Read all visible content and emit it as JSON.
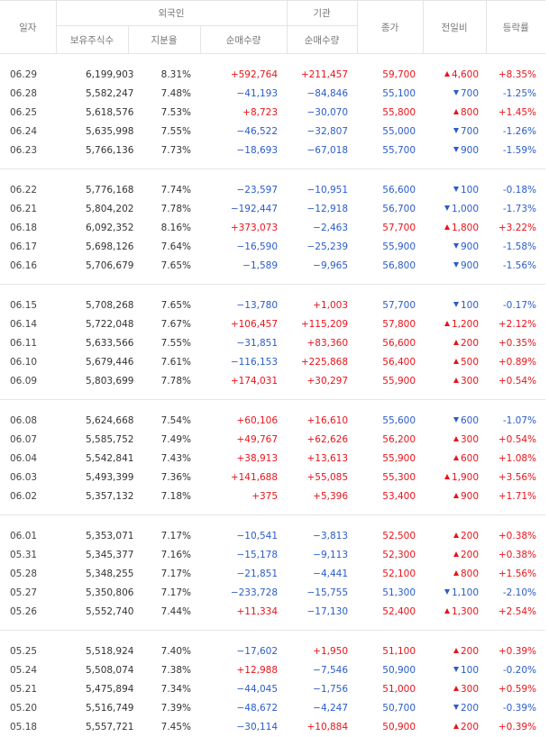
{
  "header": {
    "date": "일자",
    "foreign": "외국인",
    "institution": "기관",
    "close": "종가",
    "change": "전일비",
    "rate": "등락률",
    "holdings": "보유주식수",
    "ratio": "지분율",
    "foreign_net": "순매수량",
    "inst_net": "순매수량"
  },
  "groups": [
    [
      {
        "date": "06.29",
        "hold": "6,199,903",
        "ratio": "8.31%",
        "fnet": "+592,764",
        "inet": "+211,457",
        "close": "59,700",
        "dir": "up",
        "chg": "4,600",
        "pct": "+8.35%"
      },
      {
        "date": "06.28",
        "hold": "5,582,247",
        "ratio": "7.48%",
        "fnet": "−41,193",
        "inet": "−84,846",
        "close": "55,100",
        "dir": "dn",
        "chg": "700",
        "pct": "-1.25%"
      },
      {
        "date": "06.25",
        "hold": "5,618,576",
        "ratio": "7.53%",
        "fnet": "+8,723",
        "inet": "−30,070",
        "close": "55,800",
        "dir": "up",
        "chg": "800",
        "pct": "+1.45%"
      },
      {
        "date": "06.24",
        "hold": "5,635,998",
        "ratio": "7.55%",
        "fnet": "−46,522",
        "inet": "−32,807",
        "close": "55,000",
        "dir": "dn",
        "chg": "700",
        "pct": "-1.26%"
      },
      {
        "date": "06.23",
        "hold": "5,766,136",
        "ratio": "7.73%",
        "fnet": "−18,693",
        "inet": "−67,018",
        "close": "55,700",
        "dir": "dn",
        "chg": "900",
        "pct": "-1.59%"
      }
    ],
    [
      {
        "date": "06.22",
        "hold": "5,776,168",
        "ratio": "7.74%",
        "fnet": "−23,597",
        "inet": "−10,951",
        "close": "56,600",
        "dir": "dn",
        "chg": "100",
        "pct": "-0.18%"
      },
      {
        "date": "06.21",
        "hold": "5,804,202",
        "ratio": "7.78%",
        "fnet": "−192,447",
        "inet": "−12,918",
        "close": "56,700",
        "dir": "dn",
        "chg": "1,000",
        "pct": "-1.73%"
      },
      {
        "date": "06.18",
        "hold": "6,092,352",
        "ratio": "8.16%",
        "fnet": "+373,073",
        "inet": "−2,463",
        "close": "57,700",
        "dir": "up",
        "chg": "1,800",
        "pct": "+3.22%"
      },
      {
        "date": "06.17",
        "hold": "5,698,126",
        "ratio": "7.64%",
        "fnet": "−16,590",
        "inet": "−25,239",
        "close": "55,900",
        "dir": "dn",
        "chg": "900",
        "pct": "-1.58%"
      },
      {
        "date": "06.16",
        "hold": "5,706,679",
        "ratio": "7.65%",
        "fnet": "−1,589",
        "inet": "−9,965",
        "close": "56,800",
        "dir": "dn",
        "chg": "900",
        "pct": "-1.56%"
      }
    ],
    [
      {
        "date": "06.15",
        "hold": "5,708,268",
        "ratio": "7.65%",
        "fnet": "−13,780",
        "inet": "+1,003",
        "close": "57,700",
        "dir": "dn",
        "chg": "100",
        "pct": "-0.17%"
      },
      {
        "date": "06.14",
        "hold": "5,722,048",
        "ratio": "7.67%",
        "fnet": "+106,457",
        "inet": "+115,209",
        "close": "57,800",
        "dir": "up",
        "chg": "1,200",
        "pct": "+2.12%"
      },
      {
        "date": "06.11",
        "hold": "5,633,566",
        "ratio": "7.55%",
        "fnet": "−31,851",
        "inet": "+83,360",
        "close": "56,600",
        "dir": "up",
        "chg": "200",
        "pct": "+0.35%"
      },
      {
        "date": "06.10",
        "hold": "5,679,446",
        "ratio": "7.61%",
        "fnet": "−116,153",
        "inet": "+225,868",
        "close": "56,400",
        "dir": "up",
        "chg": "500",
        "pct": "+0.89%"
      },
      {
        "date": "06.09",
        "hold": "5,803,699",
        "ratio": "7.78%",
        "fnet": "+174,031",
        "inet": "+30,297",
        "close": "55,900",
        "dir": "up",
        "chg": "300",
        "pct": "+0.54%"
      }
    ],
    [
      {
        "date": "06.08",
        "hold": "5,624,668",
        "ratio": "7.54%",
        "fnet": "+60,106",
        "inet": "+16,610",
        "close": "55,600",
        "dir": "dn",
        "chg": "600",
        "pct": "-1.07%"
      },
      {
        "date": "06.07",
        "hold": "5,585,752",
        "ratio": "7.49%",
        "fnet": "+49,767",
        "inet": "+62,626",
        "close": "56,200",
        "dir": "up",
        "chg": "300",
        "pct": "+0.54%"
      },
      {
        "date": "06.04",
        "hold": "5,542,841",
        "ratio": "7.43%",
        "fnet": "+38,913",
        "inet": "+13,613",
        "close": "55,900",
        "dir": "up",
        "chg": "600",
        "pct": "+1.08%"
      },
      {
        "date": "06.03",
        "hold": "5,493,399",
        "ratio": "7.36%",
        "fnet": "+141,688",
        "inet": "+55,085",
        "close": "55,300",
        "dir": "up",
        "chg": "1,900",
        "pct": "+3.56%"
      },
      {
        "date": "06.02",
        "hold": "5,357,132",
        "ratio": "7.18%",
        "fnet": "+375",
        "inet": "+5,396",
        "close": "53,400",
        "dir": "up",
        "chg": "900",
        "pct": "+1.71%"
      }
    ],
    [
      {
        "date": "06.01",
        "hold": "5,353,071",
        "ratio": "7.17%",
        "fnet": "−10,541",
        "inet": "−3,813",
        "close": "52,500",
        "dir": "up",
        "chg": "200",
        "pct": "+0.38%"
      },
      {
        "date": "05.31",
        "hold": "5,345,377",
        "ratio": "7.16%",
        "fnet": "−15,178",
        "inet": "−9,113",
        "close": "52,300",
        "dir": "up",
        "chg": "200",
        "pct": "+0.38%"
      },
      {
        "date": "05.28",
        "hold": "5,348,255",
        "ratio": "7.17%",
        "fnet": "−21,851",
        "inet": "−4,441",
        "close": "52,100",
        "dir": "up",
        "chg": "800",
        "pct": "+1.56%"
      },
      {
        "date": "05.27",
        "hold": "5,350,806",
        "ratio": "7.17%",
        "fnet": "−233,728",
        "inet": "−15,755",
        "close": "51,300",
        "dir": "dn",
        "chg": "1,100",
        "pct": "-2.10%"
      },
      {
        "date": "05.26",
        "hold": "5,552,740",
        "ratio": "7.44%",
        "fnet": "+11,334",
        "inet": "−17,130",
        "close": "52,400",
        "dir": "up",
        "chg": "1,300",
        "pct": "+2.54%"
      }
    ],
    [
      {
        "date": "05.25",
        "hold": "5,518,924",
        "ratio": "7.40%",
        "fnet": "−17,602",
        "inet": "+1,950",
        "close": "51,100",
        "dir": "up",
        "chg": "200",
        "pct": "+0.39%"
      },
      {
        "date": "05.24",
        "hold": "5,508,074",
        "ratio": "7.38%",
        "fnet": "+12,988",
        "inet": "−7,546",
        "close": "50,900",
        "dir": "dn",
        "chg": "100",
        "pct": "-0.20%"
      },
      {
        "date": "05.21",
        "hold": "5,475,894",
        "ratio": "7.34%",
        "fnet": "−44,045",
        "inet": "−1,756",
        "close": "51,000",
        "dir": "up",
        "chg": "300",
        "pct": "+0.59%"
      },
      {
        "date": "05.20",
        "hold": "5,516,749",
        "ratio": "7.39%",
        "fnet": "−48,672",
        "inet": "−4,247",
        "close": "50,700",
        "dir": "dn",
        "chg": "200",
        "pct": "-0.39%"
      },
      {
        "date": "05.18",
        "hold": "5,557,721",
        "ratio": "7.45%",
        "fnet": "−30,114",
        "inet": "+10,884",
        "close": "50,900",
        "dir": "up",
        "chg": "200",
        "pct": "+0.39%"
      }
    ]
  ],
  "colors": {
    "up": "#e8131a",
    "down": "#2a5cc8"
  }
}
